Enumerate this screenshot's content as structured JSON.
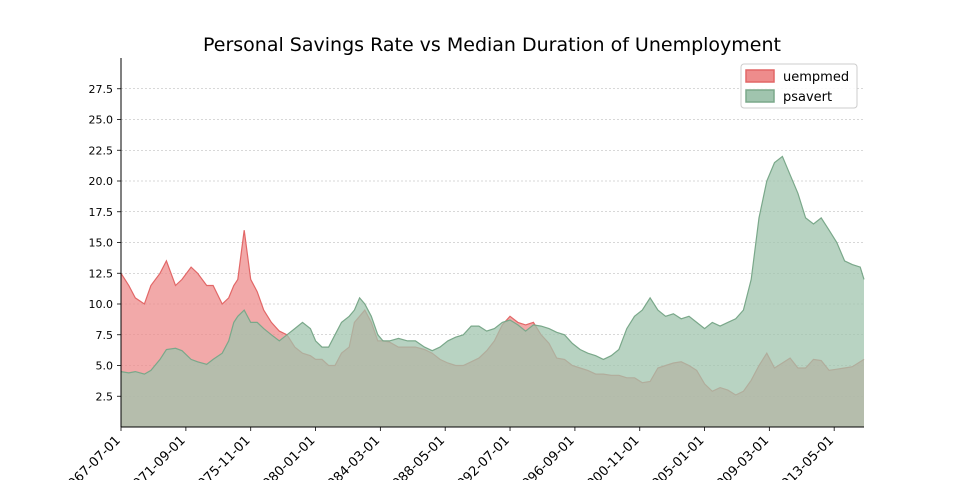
{
  "chart_data": {
    "type": "area",
    "title": "Personal Savings Rate vs Median Duration of Unemployment",
    "xlabel": "",
    "ylabel": "",
    "ylim": [
      0,
      30
    ],
    "yticks": [
      2.5,
      5.0,
      7.5,
      10.0,
      12.5,
      15.0,
      17.5,
      20.0,
      22.5,
      25.0,
      27.5
    ],
    "ytick_labels": [
      "2.5",
      "5.0",
      "7.5",
      "10.0",
      "12.5",
      "15.0",
      "17.5",
      "20.0",
      "22.5",
      "25.0",
      "27.5"
    ],
    "xlim": [
      "1967-07-01",
      "2015-04-01"
    ],
    "xticks": [
      "1967-07-01",
      "1971-09-01",
      "1975-11-01",
      "1980-01-01",
      "1984-03-01",
      "1988-05-01",
      "1992-07-01",
      "1996-09-01",
      "2000-11-01",
      "2005-01-01",
      "2009-03-01",
      "2013-05-01"
    ],
    "xtick_labels": [
      "1967-07-01",
      "1971-09-01",
      "1975-11-01",
      "1980-01-01",
      "1984-03-01",
      "1988-05-01",
      "1992-07-01",
      "1996-09-01",
      "2000-11-01",
      "2005-01-01",
      "2009-03-01",
      "2013-05-01"
    ],
    "grid": "horizontal dashed",
    "legend": "upper-right",
    "series": [
      {
        "name": "uempmed",
        "color": "#e26767",
        "fill": "#ee8c8c",
        "dates": [
          "1967-07-01",
          "1968-01-01",
          "1968-06-01",
          "1969-01-01",
          "1969-06-01",
          "1970-01-01",
          "1970-06-01",
          "1971-01-01",
          "1971-06-01",
          "1972-01-01",
          "1972-06-01",
          "1973-01-01",
          "1973-06-01",
          "1974-01-01",
          "1974-06-01",
          "1974-10-01",
          "1975-01-01",
          "1975-06-01",
          "1975-11-01",
          "1976-04-01",
          "1976-09-01",
          "1977-03-01",
          "1977-09-01",
          "1978-03-01",
          "1978-09-01",
          "1979-03-01",
          "1979-09-01",
          "1980-01-01",
          "1980-06-01",
          "1980-11-01",
          "1981-04-01",
          "1981-09-01",
          "1982-03-01",
          "1982-07-01",
          "1982-11-01",
          "1983-03-01",
          "1983-08-01",
          "1984-01-01",
          "1984-05-01",
          "1984-10-01",
          "1985-05-01",
          "1985-12-01",
          "1986-06-01",
          "1987-01-01",
          "1987-07-01",
          "1988-01-01",
          "1988-07-01",
          "1989-01-01",
          "1989-07-01",
          "1990-01-01",
          "1990-07-01",
          "1991-01-01",
          "1991-07-01",
          "1992-01-01",
          "1992-07-01",
          "1993-01-01",
          "1993-07-01",
          "1994-01-01",
          "1994-07-01",
          "1995-01-01",
          "1995-07-01",
          "1996-01-01",
          "1996-07-01",
          "1997-01-01",
          "1997-07-01",
          "1998-01-01",
          "1998-07-01",
          "1999-01-01",
          "1999-07-01",
          "2000-01-01",
          "2000-07-01",
          "2001-01-01",
          "2001-07-01",
          "2002-01-01",
          "2002-07-01",
          "2003-01-01",
          "2003-07-01",
          "2004-01-01",
          "2004-07-01",
          "2005-01-01",
          "2005-07-01",
          "2006-01-01",
          "2006-07-01",
          "2007-01-01",
          "2007-07-01",
          "2008-01-01",
          "2008-07-01",
          "2009-01-01",
          "2009-07-01",
          "2010-01-01",
          "2010-07-01",
          "2011-01-01",
          "2011-07-01",
          "2012-01-01",
          "2012-07-01",
          "2013-01-01",
          "2013-07-01",
          "2014-01-01",
          "2014-07-01",
          "2015-01-01",
          "2015-04-01"
        ],
        "values": [
          12.5,
          11.5,
          10.5,
          10.0,
          11.5,
          12.5,
          13.5,
          11.5,
          12.0,
          13.0,
          12.5,
          11.5,
          11.5,
          10.0,
          10.5,
          11.5,
          12.0,
          16.0,
          12.0,
          11.0,
          9.5,
          8.5,
          7.8,
          7.5,
          6.5,
          6.0,
          5.8,
          5.5,
          5.5,
          5.0,
          5.0,
          6.0,
          6.5,
          8.5,
          9.0,
          9.5,
          8.5,
          7.0,
          7.0,
          6.9,
          6.5,
          6.5,
          6.5,
          6.3,
          6.0,
          5.5,
          5.2,
          5.0,
          5.0,
          5.3,
          5.6,
          6.2,
          7.0,
          8.3,
          9.0,
          8.5,
          8.3,
          8.5,
          7.5,
          6.8,
          5.6,
          5.5,
          5.0,
          4.8,
          4.6,
          4.3,
          4.3,
          4.2,
          4.2,
          4.0,
          4.0,
          3.6,
          3.7,
          4.8,
          5.0,
          5.2,
          5.3,
          5.0,
          4.6,
          3.5,
          2.9,
          3.2,
          3.0,
          2.6,
          2.9,
          3.8,
          5.0,
          6.0,
          4.8,
          5.2,
          5.6,
          4.8,
          4.8,
          5.5,
          5.4,
          4.6,
          4.7,
          4.8,
          4.9,
          5.3,
          5.5
        ]
      },
      {
        "name": "psavert",
        "color": "#7aa88a",
        "fill": "#a0c4ae",
        "dates": [
          "1967-07-01",
          "1968-01-01",
          "1968-06-01",
          "1969-01-01",
          "1969-06-01",
          "1970-01-01",
          "1970-06-01",
          "1971-01-01",
          "1971-06-01",
          "1972-01-01",
          "1972-06-01",
          "1973-01-01",
          "1973-06-01",
          "1974-01-01",
          "1974-06-01",
          "1974-10-01",
          "1975-01-01",
          "1975-06-01",
          "1975-11-01",
          "1976-04-01",
          "1976-09-01",
          "1977-03-01",
          "1977-09-01",
          "1978-03-01",
          "1978-09-01",
          "1979-03-01",
          "1979-09-01",
          "1980-01-01",
          "1980-06-01",
          "1980-11-01",
          "1981-04-01",
          "1981-09-01",
          "1982-03-01",
          "1982-07-01",
          "1982-11-01",
          "1983-03-01",
          "1983-08-01",
          "1984-01-01",
          "1984-05-01",
          "1984-10-01",
          "1985-05-01",
          "1985-12-01",
          "1986-06-01",
          "1987-01-01",
          "1987-07-01",
          "1988-01-01",
          "1988-07-01",
          "1989-01-01",
          "1989-07-01",
          "1990-01-01",
          "1990-07-01",
          "1991-01-01",
          "1991-07-01",
          "1992-01-01",
          "1992-07-01",
          "1993-01-01",
          "1993-07-01",
          "1994-01-01",
          "1994-07-01",
          "1995-01-01",
          "1995-07-01",
          "1996-01-01",
          "1996-07-01",
          "1997-01-01",
          "1997-07-01",
          "1998-01-01",
          "1998-07-01",
          "1999-01-01",
          "1999-07-01",
          "2000-01-01",
          "2000-07-01",
          "2001-01-01",
          "2001-07-01",
          "2002-01-01",
          "2002-07-01",
          "2003-01-01",
          "2003-07-01",
          "2004-01-01",
          "2004-07-01",
          "2005-01-01",
          "2005-07-01",
          "2006-01-01",
          "2006-07-01",
          "2007-01-01",
          "2007-07-01",
          "2008-01-01",
          "2008-07-01",
          "2009-01-01",
          "2009-07-01",
          "2010-01-01",
          "2010-07-01",
          "2011-01-01",
          "2011-07-01",
          "2012-01-01",
          "2012-07-01",
          "2013-01-01",
          "2013-07-01",
          "2014-01-01",
          "2014-07-01",
          "2015-01-01",
          "2015-04-01"
        ],
        "values": [
          4.5,
          4.4,
          4.5,
          4.3,
          4.6,
          5.5,
          6.3,
          6.4,
          6.2,
          5.5,
          5.3,
          5.1,
          5.5,
          6.0,
          7.0,
          8.5,
          9.0,
          9.5,
          8.5,
          8.5,
          8.0,
          7.5,
          7.0,
          7.5,
          8.0,
          8.5,
          8.0,
          7.0,
          6.5,
          6.5,
          7.5,
          8.5,
          9.0,
          9.5,
          10.5,
          10.0,
          9.0,
          7.5,
          7.0,
          7.0,
          7.2,
          7.0,
          7.0,
          6.5,
          6.2,
          6.5,
          7.0,
          7.3,
          7.5,
          8.2,
          8.2,
          7.8,
          8.0,
          8.5,
          8.7,
          8.3,
          7.8,
          8.3,
          8.2,
          8.0,
          7.7,
          7.5,
          6.8,
          6.3,
          6.0,
          5.8,
          5.5,
          5.8,
          6.3,
          8.0,
          9.0,
          9.5,
          10.5,
          9.5,
          9.0,
          9.2,
          8.8,
          9.0,
          8.5,
          8.0,
          8.5,
          8.2,
          8.5,
          8.8,
          9.5,
          12.0,
          17.0,
          20.0,
          21.5,
          22.0,
          20.5,
          19.0,
          17.0,
          16.5,
          17.0,
          16.0,
          15.0,
          13.5,
          13.2,
          13.0,
          12.0
        ]
      }
    ]
  }
}
